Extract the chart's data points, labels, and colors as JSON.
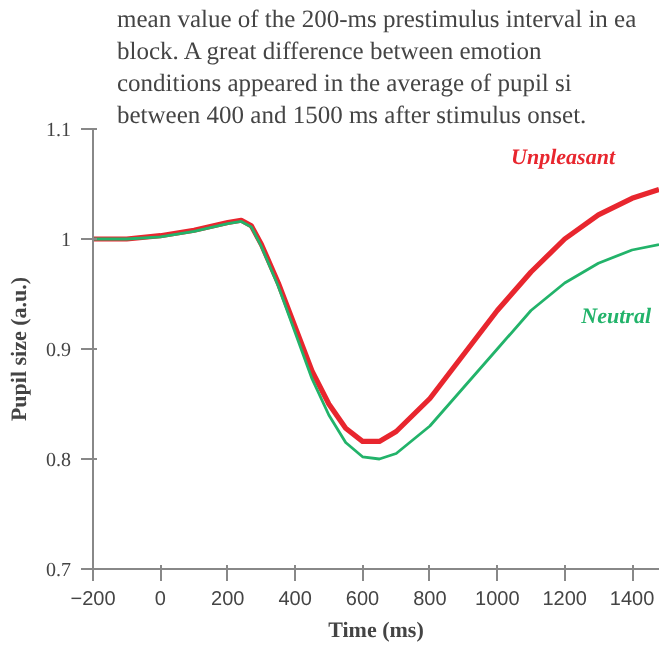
{
  "chart_data": {
    "type": "line",
    "annotations": [
      "mean value of the 200-ms prestimulus interval in ea",
      "block.  A  great  difference  between  emotion",
      "conditions  appeared  in  the  average  of  pupil  si",
      "between 400 and 1500 ms after stimulus onset."
    ],
    "xlabel": "Time (ms)",
    "ylabel": "Pupil size (a.u.)",
    "xlim": [
      -200,
      1480
    ],
    "ylim": [
      0.7,
      1.1
    ],
    "xticks": [
      -200,
      0,
      200,
      400,
      600,
      800,
      1000,
      1200,
      1400
    ],
    "yticks": [
      0.7,
      0.8,
      0.9,
      {
        "value": 1.0,
        "label": "1"
      },
      1.1
    ],
    "grid": false,
    "legend": false,
    "marker": "none",
    "line_style": "solid",
    "series": [
      {
        "name": "Unpleasant",
        "color": "#e8262e",
        "x": [
          -200,
          -100,
          0,
          100,
          200,
          240,
          270,
          300,
          350,
          400,
          450,
          500,
          550,
          600,
          650,
          700,
          800,
          900,
          1000,
          1100,
          1200,
          1300,
          1400,
          1480
        ],
        "values": [
          1.0,
          1.0,
          1.003,
          1.008,
          1.015,
          1.017,
          1.012,
          0.995,
          0.96,
          0.92,
          0.88,
          0.85,
          0.828,
          0.816,
          0.816,
          0.825,
          0.855,
          0.895,
          0.935,
          0.97,
          1.0,
          1.022,
          1.037,
          1.045
        ]
      },
      {
        "name": "Neutral",
        "color": "#22b36a",
        "x": [
          -200,
          -100,
          0,
          100,
          200,
          240,
          270,
          300,
          350,
          400,
          450,
          500,
          550,
          600,
          650,
          700,
          800,
          900,
          1000,
          1100,
          1200,
          1300,
          1400,
          1480
        ],
        "values": [
          1.0,
          1.0,
          1.002,
          1.007,
          1.014,
          1.016,
          1.011,
          0.993,
          0.957,
          0.915,
          0.873,
          0.84,
          0.815,
          0.802,
          0.8,
          0.805,
          0.83,
          0.865,
          0.9,
          0.935,
          0.96,
          0.978,
          0.99,
          0.995
        ]
      }
    ]
  }
}
